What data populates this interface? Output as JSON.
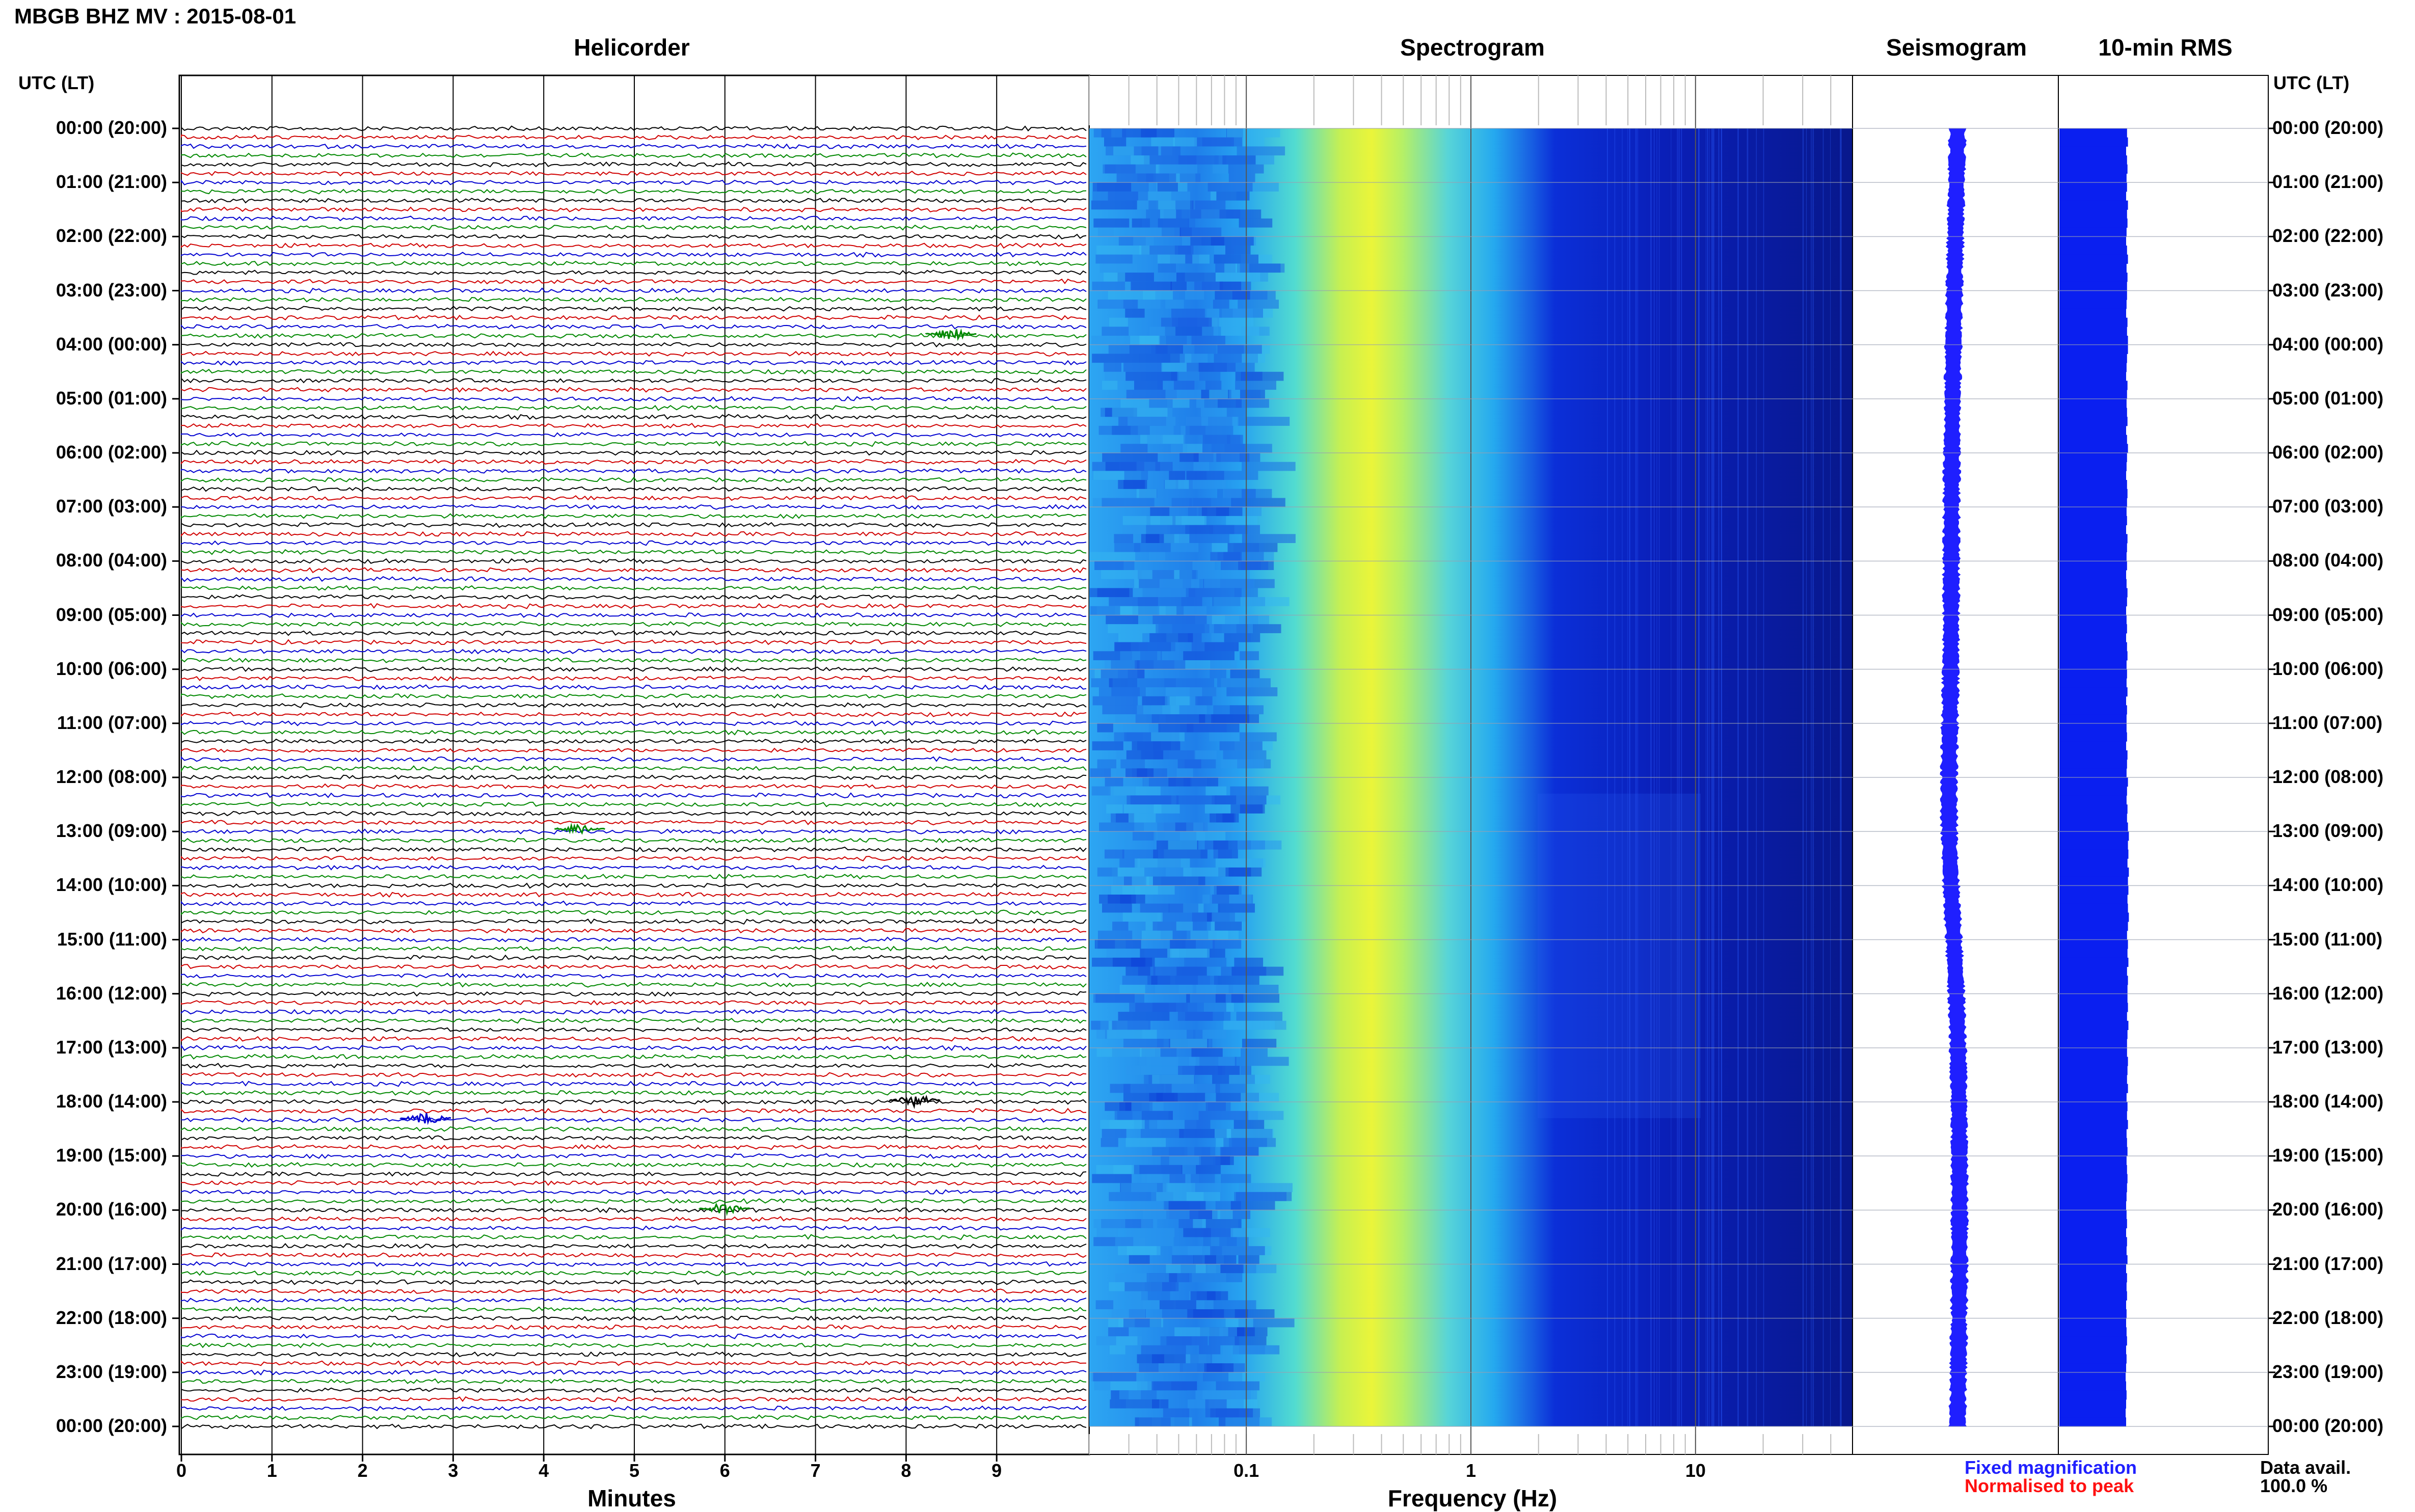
{
  "header": {
    "title": "MBGB BHZ MV : 2015-08-01"
  },
  "panels": {
    "helicorder": "Helicorder",
    "spectrogram": "Spectrogram",
    "seismogram": "Seismogram",
    "rms": "10-min RMS"
  },
  "axes": {
    "left_header": "UTC (LT)",
    "right_header": "UTC (LT)",
    "minutes_label": "Minutes",
    "frequency_label": "Frequency (Hz)"
  },
  "footer": {
    "fixed_magnification": "Fixed magnification",
    "normalised": "Normalised to peak",
    "data_avail_label": "Data avail.",
    "data_avail_value": "100.0 %"
  },
  "colors": {
    "fixed": "#1f1fff",
    "normalised": "#ff1010",
    "trace_cycle": [
      "#000000",
      "#d00000",
      "#0000d0",
      "#008800"
    ],
    "rms_fill": "#0a1ff0"
  },
  "chart_data": [
    {
      "type": "line",
      "title": "Helicorder",
      "xlabel": "Minutes",
      "x_ticks": [
        "0",
        "1",
        "2",
        "3",
        "4",
        "5",
        "6",
        "7",
        "8",
        "9"
      ],
      "xlim": [
        0,
        10
      ],
      "y_ticks": [
        "00:00 (20:00)",
        "01:00 (21:00)",
        "02:00 (22:00)",
        "03:00 (23:00)",
        "04:00 (00:00)",
        "05:00 (01:00)",
        "06:00 (02:00)",
        "07:00 (03:00)",
        "08:00 (04:00)",
        "09:00 (05:00)",
        "10:00 (06:00)",
        "11:00 (07:00)",
        "12:00 (08:00)",
        "13:00 (09:00)",
        "14:00 (10:00)",
        "15:00 (11:00)",
        "16:00 (12:00)",
        "17:00 (13:00)",
        "18:00 (14:00)",
        "19:00 (15:00)",
        "20:00 (16:00)",
        "21:00 (17:00)",
        "22:00 (18:00)",
        "23:00 (19:00)",
        "00:00 (20:00)"
      ],
      "rows_per_hour": 6,
      "events": [
        {
          "hour": 3.8,
          "minute": 8.5,
          "color": "green"
        },
        {
          "hour": 12.95,
          "minute": 4.4,
          "color": "green"
        },
        {
          "hour": 17.97,
          "minute": 8.1,
          "color": "black"
        },
        {
          "hour": 18.3,
          "minute": 2.7,
          "color": "blue"
        },
        {
          "hour": 19.97,
          "minute": 6.0,
          "color": "green"
        }
      ]
    },
    {
      "type": "heatmap",
      "title": "Spectrogram",
      "xlabel": "Frequency (Hz)",
      "x_scale": "log",
      "xlim": [
        0.02,
        50
      ],
      "x_ticks": [
        "0.1",
        "1",
        "10"
      ],
      "peak_frequency_hz": 0.35,
      "colormap": "jet"
    },
    {
      "type": "line",
      "title": "Seismogram",
      "label": "Fixed magnification"
    },
    {
      "type": "bar",
      "title": "10-min RMS",
      "bins_per_hour": 6,
      "relative_values": [
        0.7,
        0.72,
        0.68,
        0.7,
        0.71,
        0.69,
        0.7,
        0.68,
        0.72,
        0.7,
        0.71,
        0.69,
        0.68,
        0.7,
        0.72,
        0.69,
        0.71,
        0.7,
        0.7,
        0.69,
        0.68,
        0.71,
        0.7,
        0.72,
        0.72,
        0.7,
        0.69,
        0.68,
        0.71,
        0.7,
        0.69,
        0.7,
        0.71,
        0.68,
        0.7,
        0.72,
        0.7,
        0.69,
        0.68,
        0.7,
        0.71,
        0.7,
        0.69,
        0.7,
        0.68,
        0.71,
        0.7,
        0.69,
        0.7,
        0.68,
        0.69,
        0.71,
        0.7,
        0.68,
        0.69,
        0.7,
        0.68,
        0.7,
        0.71,
        0.69,
        0.7,
        0.69,
        0.71,
        0.68,
        0.7,
        0.69,
        0.69,
        0.7,
        0.68,
        0.71,
        0.7,
        0.69,
        0.72,
        0.7,
        0.69,
        0.71,
        0.7,
        0.72,
        0.74,
        0.72,
        0.73,
        0.71,
        0.74,
        0.72,
        0.73,
        0.71,
        0.72,
        0.74,
        0.72,
        0.7,
        0.72,
        0.71,
        0.73,
        0.7,
        0.72,
        0.71,
        0.71,
        0.72,
        0.7,
        0.73,
        0.71,
        0.7,
        0.7,
        0.72,
        0.71,
        0.7,
        0.72,
        0.69,
        0.71,
        0.7,
        0.72,
        0.69,
        0.7,
        0.71,
        0.69,
        0.7,
        0.71,
        0.7,
        0.69,
        0.68,
        0.69,
        0.7,
        0.68,
        0.7,
        0.69,
        0.71,
        0.68,
        0.7,
        0.69,
        0.7,
        0.68,
        0.69,
        0.68,
        0.69,
        0.7,
        0.68,
        0.69,
        0.68,
        0.67,
        0.68,
        0.69,
        0.68,
        0.67,
        0.68
      ]
    }
  ]
}
